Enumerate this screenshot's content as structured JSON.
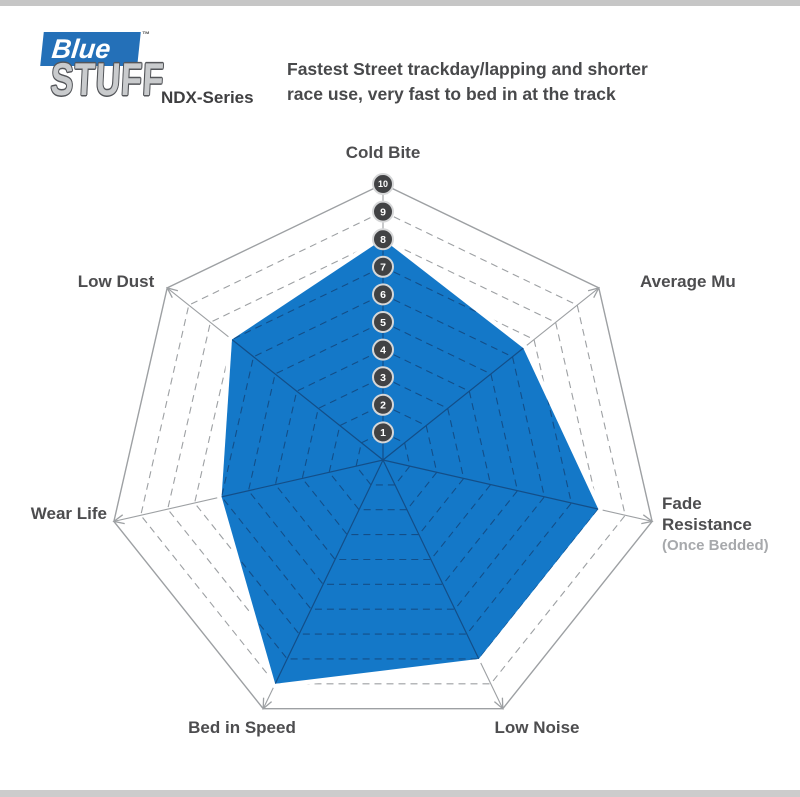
{
  "brand": {
    "name_top": "Blue",
    "trademark": "™",
    "name_bottom": "STUFF",
    "series": "NDX-Series",
    "blue_hex": "#2470b8"
  },
  "header": {
    "line1": "Fastest Street trackday/lapping and shorter",
    "line2": "race use, very fast to bed in at the track"
  },
  "chart_data": {
    "type": "radar",
    "axes": [
      {
        "label": "Cold Bite",
        "value": 8
      },
      {
        "label": "Average Mu",
        "value": 6.5
      },
      {
        "label": "Fade Resistance",
        "sublabel": "(Once Bedded)",
        "value": 8
      },
      {
        "label": "Low Noise",
        "value": 8
      },
      {
        "label": "Bed in Speed",
        "value": 9
      },
      {
        "label": "Wear Life",
        "value": 6
      },
      {
        "label": "Low Dust",
        "value": 7
      }
    ],
    "scale": {
      "min": 0,
      "max": 10,
      "ring_values": [
        1,
        2,
        3,
        4,
        5,
        6,
        7,
        8,
        9,
        10
      ],
      "tick_labels": [
        "1",
        "2",
        "3",
        "4",
        "5",
        "6",
        "7",
        "8",
        "9",
        "10"
      ],
      "tick_labels_axis": "Cold Bite"
    },
    "layout": {
      "grid_shape": "heptagon",
      "start_axis": "top",
      "direction": "clockwise",
      "rings_1_to_9": "dashed",
      "outer_ring": "solid",
      "axes_have_arrowheads": true
    },
    "colors": {
      "fill": "#1478c8",
      "polygon_halo": "#ffffff",
      "grid": "#9da0a3",
      "grid_on_fill": "#134e88",
      "tick_circle_fill": "#414244",
      "tick_circle_ring": "#d6d7d8",
      "tick_number": "#ffffff"
    }
  }
}
